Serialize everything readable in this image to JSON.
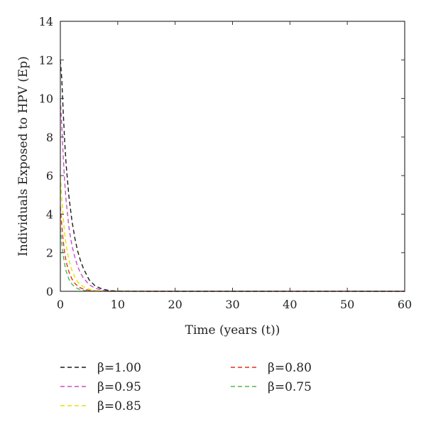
{
  "chart_data": {
    "type": "line",
    "title": "",
    "xlabel": "Time (years (t))",
    "ylabel": "Individuals Exposed to HPV (Ep)",
    "xlim": [
      0,
      60
    ],
    "ylim": [
      0,
      14
    ],
    "xticks": [
      0,
      10,
      20,
      30,
      40,
      50,
      60
    ],
    "yticks": [
      0,
      2,
      4,
      6,
      8,
      10,
      12,
      14
    ],
    "grid": false,
    "legend_position": "bottom",
    "line_style": "dashed",
    "x": [
      0,
      0.25,
      0.5,
      0.75,
      1,
      1.5,
      2,
      2.5,
      3,
      3.5,
      4,
      5,
      6,
      7,
      8,
      9,
      10,
      15,
      20,
      30,
      40,
      50,
      60
    ],
    "series": [
      {
        "name": "β=1.00",
        "color": "#1a1a1a",
        "values": [
          12.0,
          11.0,
          9.3,
          7.8,
          6.6,
          4.9,
          3.7,
          2.8,
          2.1,
          1.6,
          1.2,
          0.6,
          0.3,
          0.15,
          0.07,
          0.03,
          0.01,
          0,
          0,
          0,
          0,
          0,
          0
        ]
      },
      {
        "name": "β=0.95",
        "color": "#c64fc6",
        "values": [
          10.0,
          8.6,
          7.0,
          5.7,
          4.7,
          3.3,
          2.4,
          1.8,
          1.3,
          0.95,
          0.7,
          0.35,
          0.17,
          0.08,
          0.04,
          0.02,
          0.01,
          0,
          0,
          0,
          0,
          0,
          0
        ]
      },
      {
        "name": "β=0.85",
        "color": "#e8e000",
        "values": [
          6.0,
          4.8,
          3.8,
          3.0,
          2.4,
          1.6,
          1.1,
          0.75,
          0.5,
          0.35,
          0.24,
          0.11,
          0.05,
          0.02,
          0.01,
          0,
          0,
          0,
          0,
          0,
          0,
          0,
          0
        ]
      },
      {
        "name": "β=0.80",
        "color": "#e0301e",
        "values": [
          4.4,
          3.4,
          2.6,
          2.0,
          1.55,
          1.0,
          0.65,
          0.42,
          0.28,
          0.18,
          0.12,
          0.05,
          0.02,
          0.01,
          0,
          0,
          0,
          0,
          0,
          0,
          0,
          0,
          0
        ]
      },
      {
        "name": "β=0.75",
        "color": "#4fb84f",
        "values": [
          3.3,
          2.5,
          1.85,
          1.4,
          1.05,
          0.62,
          0.38,
          0.23,
          0.14,
          0.09,
          0.05,
          0.02,
          0.01,
          0,
          0,
          0,
          0,
          0,
          0,
          0,
          0,
          0,
          0
        ]
      }
    ]
  }
}
